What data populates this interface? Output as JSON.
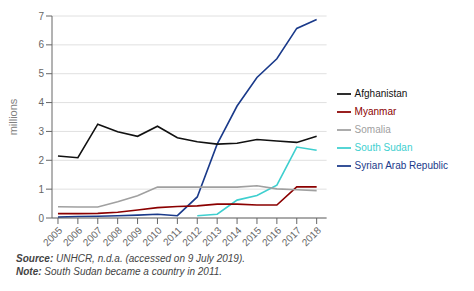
{
  "chart_data": {
    "type": "line",
    "x": [
      2005,
      2006,
      2007,
      2008,
      2009,
      2010,
      2011,
      2012,
      2013,
      2014,
      2015,
      2016,
      2017,
      2018
    ],
    "series": [
      {
        "name": "Syrian Arab Republic",
        "color": "#1a3a8a",
        "values": [
          0.03,
          0.05,
          0.06,
          0.08,
          0.1,
          0.13,
          0.08,
          0.73,
          2.56,
          3.88,
          4.87,
          5.52,
          6.57,
          6.88
        ]
      },
      {
        "name": "Afghanistan",
        "color": "#111111",
        "values": [
          2.15,
          2.09,
          3.25,
          2.99,
          2.83,
          3.18,
          2.78,
          2.64,
          2.56,
          2.59,
          2.72,
          2.67,
          2.62,
          2.83
        ]
      },
      {
        "name": "South Sudan",
        "color": "#3ecfcf",
        "values": [
          null,
          null,
          null,
          null,
          null,
          null,
          null,
          0.08,
          0.13,
          0.62,
          0.78,
          1.14,
          2.46,
          2.35
        ]
      },
      {
        "name": "Myanmar",
        "color": "#8B0000",
        "values": [
          0.15,
          0.15,
          0.16,
          0.2,
          0.28,
          0.36,
          0.4,
          0.42,
          0.48,
          0.48,
          0.45,
          0.45,
          1.08,
          1.08
        ]
      },
      {
        "name": "Somalia",
        "color": "#A0A0A0",
        "values": [
          0.39,
          0.38,
          0.38,
          0.56,
          0.77,
          1.07,
          1.07,
          1.07,
          1.07,
          1.07,
          1.12,
          1.01,
          0.98,
          0.95
        ]
      }
    ],
    "ylabel": "millions",
    "xlim": [
      2004.7,
      2018.5
    ],
    "xticks": [
      2005,
      2006,
      2007,
      2008,
      2009,
      2010,
      2011,
      2012,
      2013,
      2014,
      2015,
      2016,
      2017,
      2018
    ],
    "ylim": [
      0,
      7
    ],
    "yticks": [
      0,
      1,
      2,
      3,
      4,
      5,
      6,
      7
    ],
    "grid": "y",
    "legend": "right",
    "annotations": [
      "Source: UNHCR, n.d.a. (accessed on 9 July 2019).",
      "Note: South Sudan became a country in 2011."
    ]
  }
}
